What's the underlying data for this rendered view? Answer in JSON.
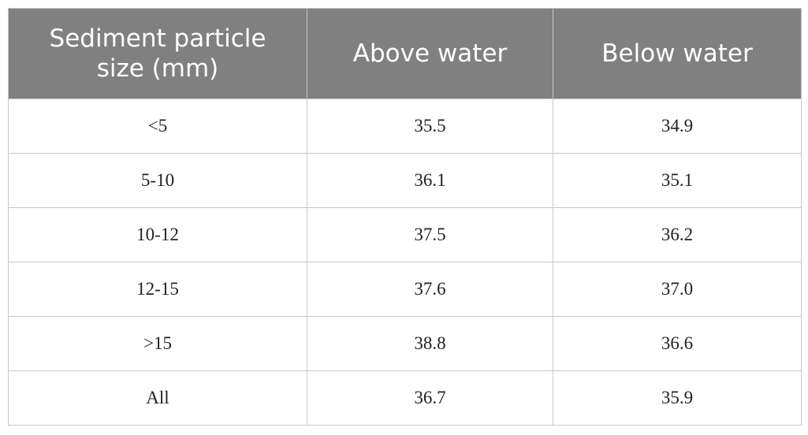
{
  "table": {
    "header": [
      "Sediment particle size (mm)",
      "Above water",
      "Below water"
    ],
    "rows": [
      [
        "<5",
        "35.5",
        "34.9"
      ],
      [
        "5-10",
        "36.1",
        "35.1"
      ],
      [
        "10-12",
        "37.5",
        "36.2"
      ],
      [
        "12-15",
        "37.6",
        "37.0"
      ],
      [
        ">15",
        "38.8",
        "36.6"
      ],
      [
        "All",
        "36.7",
        "35.9"
      ]
    ]
  }
}
